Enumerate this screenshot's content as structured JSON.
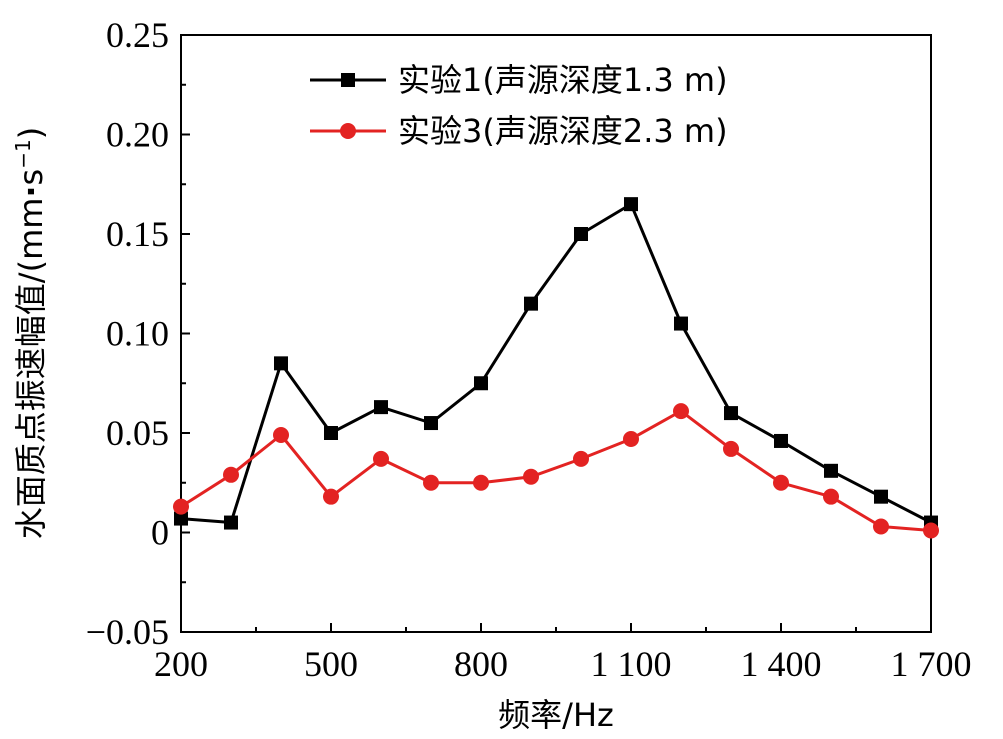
{
  "chart_data": {
    "type": "line",
    "xlabel": "频率/Hz",
    "ylabel_main": "水面质点振速幅值/(mm",
    "ylabel_dot": "·",
    "ylabel_s": "s",
    "ylabel_exp": "−1",
    "ylabel_close": ")",
    "xlim": [
      200,
      1700
    ],
    "ylim": [
      -0.05,
      0.25
    ],
    "x_ticks": [
      200,
      500,
      800,
      1100,
      1400,
      1700
    ],
    "x_tick_labels": [
      "200",
      "500",
      "800",
      "1 100",
      "1 400",
      "1 700"
    ],
    "y_ticks": [
      -0.05,
      0,
      0.05,
      0.1,
      0.15,
      0.2,
      0.25
    ],
    "y_tick_labels": [
      "−0.05",
      "0",
      "0.05",
      "0.10",
      "0.15",
      "0.20",
      "0.25"
    ],
    "grid": false,
    "legend_position": "top-center",
    "series": [
      {
        "name": "实验1(声源深度1.3 m)",
        "color": "#000000",
        "marker": "square",
        "x": [
          200,
          300,
          400,
          500,
          600,
          700,
          800,
          900,
          1000,
          1100,
          1200,
          1300,
          1400,
          1500,
          1600,
          1700
        ],
        "y": [
          0.007,
          0.005,
          0.085,
          0.05,
          0.063,
          0.055,
          0.075,
          0.115,
          0.15,
          0.165,
          0.105,
          0.06,
          0.046,
          0.031,
          0.018,
          0.005
        ]
      },
      {
        "name": "实验3(声源深度2.3 m)",
        "color": "#e32322",
        "marker": "circle",
        "x": [
          200,
          300,
          400,
          500,
          600,
          700,
          800,
          900,
          1000,
          1100,
          1200,
          1300,
          1400,
          1500,
          1600,
          1700
        ],
        "y": [
          0.013,
          0.029,
          0.049,
          0.018,
          0.037,
          0.025,
          0.025,
          0.028,
          0.037,
          0.047,
          0.061,
          0.042,
          0.025,
          0.018,
          0.003,
          0.001
        ]
      }
    ]
  }
}
